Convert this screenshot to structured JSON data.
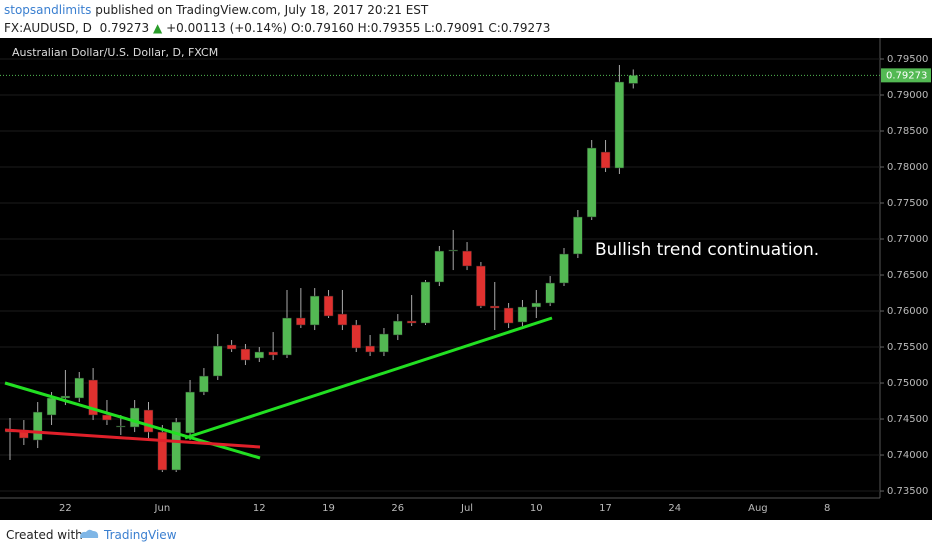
{
  "header": {
    "author": "stopsandlimits",
    "published": "published on TradingView.com, July 18, 2017 20:21 EST",
    "symbol": "FX:AUDUSD, D",
    "last": "0.79273",
    "arrow": "▲",
    "change": "+0.00113 (+0.14%)",
    "ohlc": [
      {
        "label": "O:",
        "value": "0.79160"
      },
      {
        "label": "H:",
        "value": "0.79355"
      },
      {
        "label": "L:",
        "value": "0.79091"
      },
      {
        "label": "C:",
        "value": "0.79273"
      }
    ]
  },
  "footer": {
    "created": "Created with",
    "brand": "TradingView"
  },
  "chart_data": {
    "type": "candlestick",
    "title": "Australian Dollar/U.S. Dollar, D, FXCM",
    "annotation": "Bullish trend continuation.",
    "up_color": "#53b953",
    "down_color": "#e0312f",
    "grid": true,
    "ylim": [
      0.73417,
      0.79764
    ],
    "yticks": [
      {
        "value": 0.735,
        "label": "0.73500"
      },
      {
        "value": 0.74,
        "label": "0.74000"
      },
      {
        "value": 0.745,
        "label": "0.74500"
      },
      {
        "value": 0.75,
        "label": "0.75000"
      },
      {
        "value": 0.755,
        "label": "0.75500"
      },
      {
        "value": 0.76,
        "label": "0.76000"
      },
      {
        "value": 0.765,
        "label": "0.76500"
      },
      {
        "value": 0.77,
        "label": "0.77000"
      },
      {
        "value": 0.775,
        "label": "0.77500"
      },
      {
        "value": 0.78,
        "label": "0.78000"
      },
      {
        "value": 0.785,
        "label": "0.78500"
      },
      {
        "value": 0.79,
        "label": "0.79000"
      },
      {
        "value": 0.795,
        "label": "0.79500"
      }
    ],
    "categories": [
      null,
      null,
      null,
      null,
      "22",
      null,
      null,
      null,
      null,
      null,
      null,
      "Jun",
      null,
      null,
      null,
      null,
      null,
      null,
      "12",
      null,
      null,
      null,
      null,
      "19",
      null,
      null,
      null,
      null,
      "26",
      null,
      null,
      null,
      null,
      "Jul",
      null,
      null,
      null,
      null,
      "10",
      null,
      null,
      null,
      null,
      "17",
      null,
      null,
      null,
      null,
      "24",
      null,
      null,
      null,
      null,
      null,
      "Aug",
      null,
      null,
      null,
      null,
      "8",
      null,
      null,
      null
    ],
    "open": [
      0.74319,
      0.74347,
      0.74208,
      0.74556,
      0.74792,
      0.74792,
      0.75042,
      0.74556,
      0.74389,
      0.74389,
      0.74625,
      0.74319,
      0.73792,
      0.74306,
      0.74875,
      0.75097,
      0.75528,
      0.75472,
      0.75347,
      0.75431,
      0.75389,
      0.75903,
      0.75806,
      0.76208,
      0.75958,
      0.75806,
      0.75514,
      0.75431,
      0.75667,
      0.75861,
      0.75833,
      0.76403,
      0.76847,
      0.76833,
      0.76625,
      0.76069,
      0.76042,
      0.75847,
      0.76056,
      0.76111,
      0.76389,
      0.76792,
      0.77306,
      0.78208,
      0.77986,
      0.7916,
      null,
      null,
      null,
      null,
      null,
      null,
      null,
      null,
      null,
      null,
      null,
      null,
      null,
      null,
      null,
      null,
      null
    ],
    "high": [
      0.74514,
      0.74486,
      0.74736,
      0.74875,
      0.75181,
      0.75153,
      0.75208,
      0.74764,
      0.74556,
      0.74764,
      0.74736,
      0.74417,
      0.74514,
      0.75042,
      0.75208,
      0.75681,
      0.75597,
      0.75542,
      0.755,
      0.75708,
      0.76292,
      0.76319,
      0.76319,
      0.76292,
      0.76292,
      0.75875,
      0.75667,
      0.75764,
      0.75958,
      0.76222,
      0.76431,
      0.76903,
      0.77125,
      0.76958,
      0.76681,
      0.76403,
      0.76111,
      0.76153,
      0.76292,
      0.76486,
      0.76875,
      0.77403,
      0.78375,
      0.78375,
      0.79417,
      0.79355,
      null,
      null,
      null,
      null,
      null,
      null,
      null,
      null,
      null,
      null,
      null,
      null,
      null,
      null,
      null,
      null,
      null
    ],
    "low": [
      0.73931,
      0.74139,
      0.74097,
      0.74417,
      0.74694,
      0.74736,
      0.74486,
      0.74417,
      0.74278,
      0.74319,
      0.74208,
      0.73764,
      0.73764,
      0.74208,
      0.74833,
      0.75042,
      0.75431,
      0.7525,
      0.75292,
      0.75319,
      0.75347,
      0.75764,
      0.75736,
      0.75903,
      0.75736,
      0.75431,
      0.75375,
      0.75375,
      0.75597,
      0.75792,
      0.75806,
      0.76347,
      0.76569,
      0.76569,
      0.76042,
      0.75736,
      0.75764,
      0.75792,
      0.75903,
      0.76069,
      0.76347,
      0.76736,
      0.77264,
      0.77931,
      0.77903,
      0.79091,
      null,
      null,
      null,
      null,
      null,
      null,
      null,
      null,
      null,
      null,
      null,
      null,
      null,
      null,
      null,
      null,
      null
    ],
    "close": [
      0.74347,
      0.74236,
      0.74597,
      0.74792,
      0.74819,
      0.75069,
      0.74556,
      0.74486,
      0.74403,
      0.74653,
      0.74319,
      0.73792,
      0.74458,
      0.74875,
      0.75097,
      0.75514,
      0.75472,
      0.75319,
      0.75431,
      0.75389,
      0.75903,
      0.75806,
      0.76208,
      0.75931,
      0.75806,
      0.75486,
      0.75431,
      0.75681,
      0.75861,
      0.75833,
      0.76403,
      0.76833,
      0.76847,
      0.76625,
      0.76069,
      0.76042,
      0.75833,
      0.76056,
      0.76111,
      0.76389,
      0.76792,
      0.77306,
      0.78264,
      0.77986,
      0.79181,
      0.79273,
      null,
      null,
      null,
      null,
      null,
      null,
      null,
      null,
      null,
      null,
      null,
      null,
      null,
      null,
      null,
      null,
      null
    ]
  }
}
